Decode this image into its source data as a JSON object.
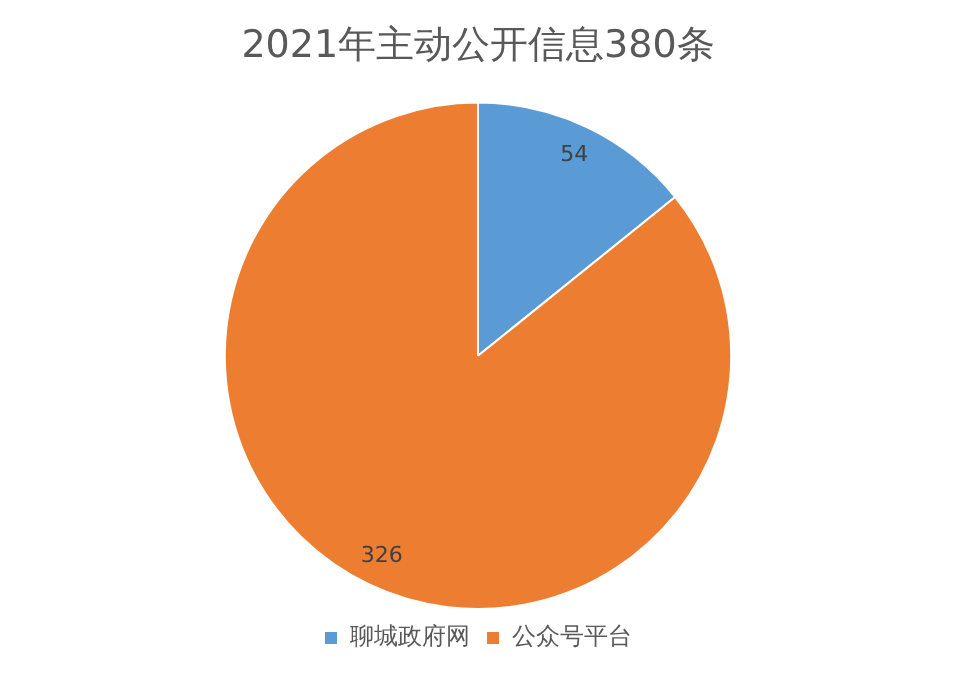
{
  "chart_data": {
    "type": "pie",
    "title": "2021年主动公开信息380条",
    "categories": [
      "聊城政府网",
      "公众号平台"
    ],
    "values": [
      54,
      326
    ],
    "colors": [
      "#5b9bd5",
      "#ed7d31"
    ],
    "data_labels": true,
    "legend": "bottom"
  }
}
